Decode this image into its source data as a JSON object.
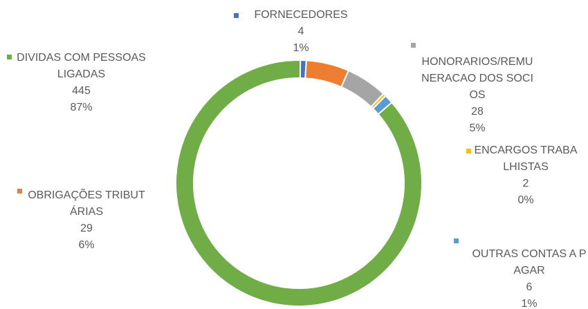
{
  "chart_data": {
    "type": "donut",
    "categories": [
      "FORNECEDORES",
      "OBRIGAÇÕES TRIBUTÁRIAS",
      "HONORARIOS/REMUNERACAO DOS SOCIOS",
      "ENCARGOS TRABALHISTAS",
      "OUTRAS CONTAS A PAGAR",
      "DIVIDAS COM PESSOAS LIGADAS"
    ],
    "values": [
      4,
      29,
      28,
      2,
      6,
      445
    ],
    "percent_labels": [
      "1%",
      "6%",
      "5%",
      "0%",
      "1%",
      "87%"
    ],
    "colors": [
      "#4472c4",
      "#ed7d31",
      "#a5a5a5",
      "#ffc000",
      "#5b9bd5",
      "#70ad47"
    ]
  }
}
